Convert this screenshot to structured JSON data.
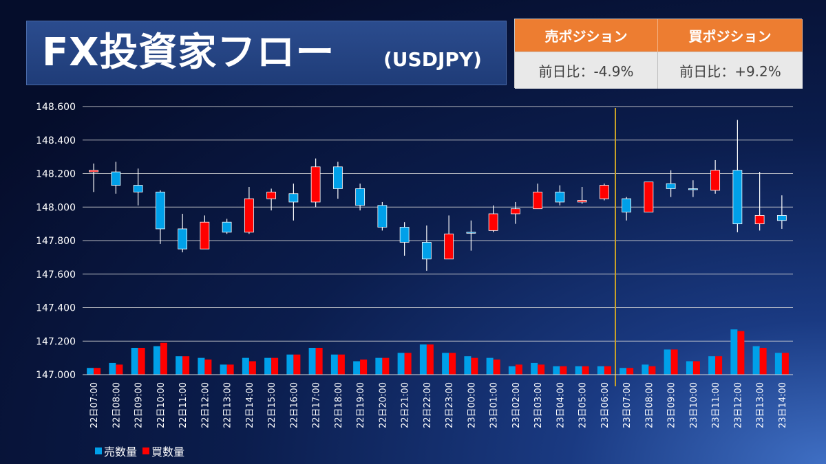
{
  "header": {
    "title": "FX投資家フロー",
    "subtitle": "(USDJPY)"
  },
  "positions": {
    "sell": {
      "label": "売ポジション",
      "change": "前日比：-4.9%"
    },
    "buy": {
      "label": "買ポジション",
      "change": "前日比：+9.2%"
    }
  },
  "colors": {
    "sell": "#00a0e9",
    "buy": "#ff0000",
    "divider": "#c9a227",
    "header_orange": "#ed7d31"
  },
  "legend": {
    "sell_label": "売数量",
    "buy_label": "買数量"
  },
  "chart_data": {
    "type": "candlestick",
    "ylim": [
      147.0,
      148.6
    ],
    "y_ticks": [
      "148.600",
      "148.400",
      "148.200",
      "148.000",
      "147.800",
      "147.600",
      "147.400",
      "147.200",
      "147.000"
    ],
    "grid": true,
    "divider_after_category": "23日06:00",
    "categories": [
      "22日07:00",
      "22日08:00",
      "22日09:00",
      "22日10:00",
      "22日11:00",
      "22日12:00",
      "22日13:00",
      "22日14:00",
      "22日15:00",
      "22日16:00",
      "22日17:00",
      "22日18:00",
      "22日19:00",
      "22日20:00",
      "22日21:00",
      "22日22:00",
      "22日23:00",
      "23日00:00",
      "23日01:00",
      "23日02:00",
      "23日03:00",
      "23日04:00",
      "23日05:00",
      "23日06:00",
      "23日07:00",
      "23日08:00",
      "23日09:00",
      "23日10:00",
      "23日11:00",
      "23日12:00",
      "23日13:00",
      "23日14:00"
    ],
    "candles": [
      {
        "open": 148.21,
        "high": 148.26,
        "low": 148.09,
        "close": 148.22
      },
      {
        "open": 148.21,
        "high": 148.27,
        "low": 148.08,
        "close": 148.13
      },
      {
        "open": 148.13,
        "high": 148.23,
        "low": 148.01,
        "close": 148.09
      },
      {
        "open": 148.09,
        "high": 148.1,
        "low": 147.78,
        "close": 147.87
      },
      {
        "open": 147.87,
        "high": 147.96,
        "low": 147.73,
        "close": 147.75
      },
      {
        "open": 147.75,
        "high": 147.95,
        "low": 147.75,
        "close": 147.91
      },
      {
        "open": 147.91,
        "high": 147.93,
        "low": 147.84,
        "close": 147.85
      },
      {
        "open": 147.85,
        "high": 148.12,
        "low": 147.84,
        "close": 148.05
      },
      {
        "open": 148.05,
        "high": 148.11,
        "low": 147.98,
        "close": 148.09
      },
      {
        "open": 148.08,
        "high": 148.14,
        "low": 147.92,
        "close": 148.03
      },
      {
        "open": 148.03,
        "high": 148.29,
        "low": 148.0,
        "close": 148.24
      },
      {
        "open": 148.24,
        "high": 148.27,
        "low": 148.05,
        "close": 148.11
      },
      {
        "open": 148.11,
        "high": 148.14,
        "low": 147.98,
        "close": 148.01
      },
      {
        "open": 148.01,
        "high": 148.03,
        "low": 147.86,
        "close": 147.88
      },
      {
        "open": 147.88,
        "high": 147.91,
        "low": 147.71,
        "close": 147.79
      },
      {
        "open": 147.79,
        "high": 147.89,
        "low": 147.62,
        "close": 147.69
      },
      {
        "open": 147.69,
        "high": 147.95,
        "low": 147.69,
        "close": 147.84
      },
      {
        "open": 147.85,
        "high": 147.92,
        "low": 147.74,
        "close": 147.85
      },
      {
        "open": 147.86,
        "high": 148.01,
        "low": 147.85,
        "close": 147.96
      },
      {
        "open": 147.96,
        "high": 148.03,
        "low": 147.9,
        "close": 147.99
      },
      {
        "open": 147.99,
        "high": 148.14,
        "low": 147.99,
        "close": 148.09
      },
      {
        "open": 148.09,
        "high": 148.13,
        "low": 148.01,
        "close": 148.03
      },
      {
        "open": 148.03,
        "high": 148.12,
        "low": 148.02,
        "close": 148.04
      },
      {
        "open": 148.05,
        "high": 148.14,
        "low": 148.04,
        "close": 148.13
      },
      {
        "open": 148.05,
        "high": 148.06,
        "low": 147.92,
        "close": 147.97
      },
      {
        "open": 147.97,
        "high": 148.15,
        "low": 147.97,
        "close": 148.15
      },
      {
        "open": 148.14,
        "high": 148.22,
        "low": 148.06,
        "close": 148.11
      },
      {
        "open": 148.11,
        "high": 148.16,
        "low": 148.06,
        "close": 148.11
      },
      {
        "open": 148.1,
        "high": 148.28,
        "low": 148.08,
        "close": 148.22
      },
      {
        "open": 148.22,
        "high": 148.52,
        "low": 147.85,
        "close": 147.9
      },
      {
        "open": 147.9,
        "high": 148.21,
        "low": 147.86,
        "close": 147.95
      },
      {
        "open": 147.95,
        "high": 148.07,
        "low": 147.87,
        "close": 147.92
      }
    ],
    "volume_series": [
      {
        "name": "売数量",
        "values": [
          147.04,
          147.07,
          147.16,
          147.17,
          147.11,
          147.1,
          147.06,
          147.1,
          147.1,
          147.12,
          147.16,
          147.12,
          147.08,
          147.1,
          147.13,
          147.18,
          147.13,
          147.11,
          147.1,
          147.05,
          147.07,
          147.05,
          147.05,
          147.05,
          147.04,
          147.06,
          147.15,
          147.08,
          147.11,
          147.27,
          147.17,
          147.13
        ]
      },
      {
        "name": "買数量",
        "values": [
          147.04,
          147.06,
          147.16,
          147.19,
          147.11,
          147.09,
          147.06,
          147.08,
          147.1,
          147.12,
          147.16,
          147.12,
          147.09,
          147.1,
          147.13,
          147.18,
          147.13,
          147.1,
          147.09,
          147.06,
          147.06,
          147.05,
          147.05,
          147.05,
          147.04,
          147.05,
          147.15,
          147.08,
          147.11,
          147.26,
          147.16,
          147.13
        ]
      }
    ]
  }
}
